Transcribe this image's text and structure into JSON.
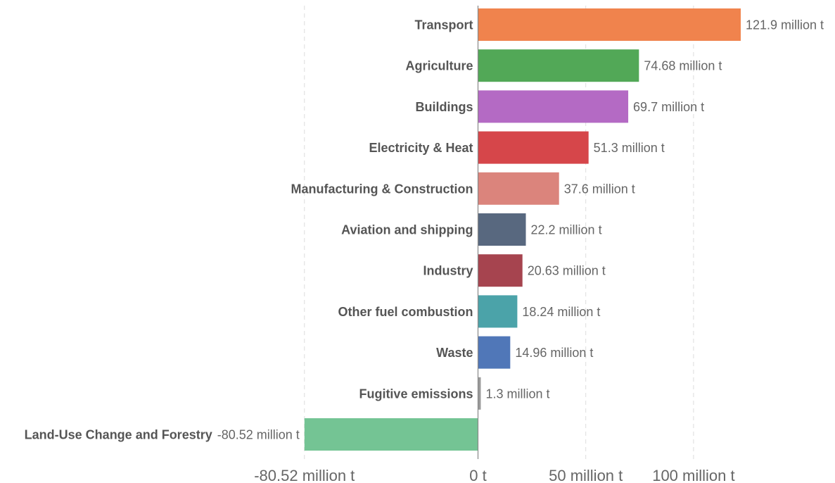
{
  "chart_data": {
    "type": "bar",
    "orientation": "horizontal",
    "unit": "million t",
    "categories": [
      "Transport",
      "Agriculture",
      "Buildings",
      "Electricity & Heat",
      "Manufacturing & Construction",
      "Aviation and shipping",
      "Industry",
      "Other fuel combustion",
      "Waste",
      "Fugitive emissions",
      "Land-Use Change and Forestry"
    ],
    "values": [
      121.9,
      74.68,
      69.7,
      51.3,
      37.6,
      22.2,
      20.63,
      18.24,
      14.96,
      1.3,
      -80.52
    ],
    "value_labels": [
      "121.9 million t",
      "74.68 million t",
      "69.7 million t",
      "51.3 million t",
      "37.6 million t",
      "22.2 million t",
      "20.63 million t",
      "18.24 million t",
      "14.96 million t",
      "1.3 million t",
      "-80.52 million t"
    ],
    "colors": [
      "#f0834d",
      "#52a857",
      "#b46ac4",
      "#d6464a",
      "#db847c",
      "#58687f",
      "#a6444f",
      "#4ba3a9",
      "#5077b8",
      "#9a9a9a",
      "#74c494"
    ],
    "x_ticks": [
      {
        "value": -80.52,
        "label": "-80.52 million t"
      },
      {
        "value": 0,
        "label": "0 t"
      },
      {
        "value": 50,
        "label": "50 million t"
      },
      {
        "value": 100,
        "label": "100 million t"
      }
    ],
    "xlim": [
      -80.52,
      121.9
    ],
    "grid": true,
    "legend": "none",
    "title": "",
    "xlabel": "",
    "ylabel": ""
  }
}
